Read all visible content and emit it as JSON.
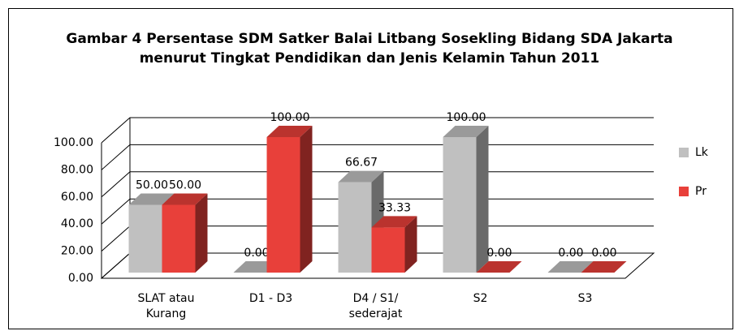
{
  "chart_data": {
    "type": "bar3d",
    "title": "Gambar 4 Persentase SDM Satker Balai Litbang Sosekling Bidang SDA Jakarta menurut Tingkat Pendidikan dan Jenis Kelamin Tahun 2011",
    "categories": [
      "SLAT atau Kurang",
      "D1 - D3",
      "D4 / S1/ sederajat",
      "S2",
      "S3"
    ],
    "series": [
      {
        "name": "Lk",
        "color": "#c0c0c0",
        "values": [
          50,
          0,
          66.67,
          100,
          0
        ],
        "value_labels": [
          "50.00",
          "0.00",
          "66.67",
          "100.00",
          "0.00"
        ]
      },
      {
        "name": "Pr",
        "color": "#e8403a",
        "values": [
          50,
          100,
          33.33,
          0,
          0
        ],
        "value_labels": [
          "50.00",
          "100.00",
          "33.33",
          "0.00",
          "0.00"
        ]
      }
    ],
    "ylim": [
      0,
      100
    ],
    "yticks": [
      {
        "value": 0,
        "label": "0.00"
      },
      {
        "value": 20,
        "label": "20.00"
      },
      {
        "value": 40,
        "label": "40.00"
      },
      {
        "value": 60,
        "label": "60.00"
      },
      {
        "value": 80,
        "label": "80.00"
      },
      {
        "value": 100,
        "label": "100.00"
      }
    ],
    "grid": true,
    "legend": "right"
  }
}
